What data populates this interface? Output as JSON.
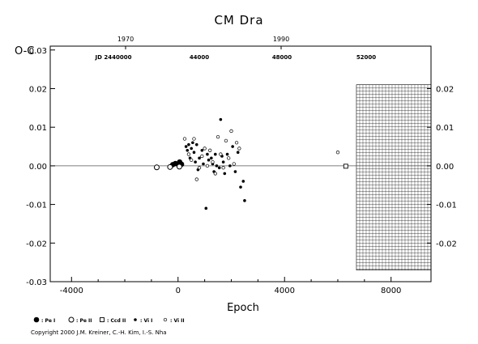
{
  "chart_data": {
    "type": "scatter",
    "title": "CM Dra",
    "xlabel": "Epoch",
    "ylabel": "O-C",
    "xlim": [
      -4800,
      9500
    ],
    "ylim": [
      -0.03,
      0.031
    ],
    "x_ticks": [
      "-4000",
      "0",
      "4000",
      "8000"
    ],
    "y_ticks_left": [
      "0.03",
      "0.02",
      "0.01",
      "0.00",
      "-0.01",
      "-0.02",
      "-0.03"
    ],
    "y_ticks_right": [
      "0.02",
      "0.01",
      "0.00",
      "-0.01",
      "-0.02"
    ],
    "top_year_axis": [
      "1970",
      "1990"
    ],
    "top_jd_axis": [
      "JD 2440000",
      "44000",
      "48000",
      "52000"
    ],
    "reference_line_y": 0,
    "future_region_start_epoch": 6700,
    "series": [
      {
        "name": ": Pe I",
        "marker": "filled-circle-large",
        "points": [
          [
            -200,
            0.0003
          ],
          [
            -100,
            0.0006
          ],
          [
            0,
            0.0005
          ],
          [
            60,
            0.001
          ],
          [
            130,
            0.0004
          ]
        ]
      },
      {
        "name": ": Pe II",
        "marker": "open-circle-large",
        "points": [
          [
            -800,
            -0.0004
          ],
          [
            -300,
            -0.0003
          ],
          [
            50,
            -0.0002
          ]
        ]
      },
      {
        "name": ": Ccd II",
        "marker": "open-square",
        "points": [
          [
            6300,
            -0.0001
          ]
        ]
      },
      {
        "name": ": Vi I",
        "marker": "filled-dot",
        "points": [
          [
            300,
            0.005
          ],
          [
            350,
            0.004
          ],
          [
            400,
            0.0055
          ],
          [
            450,
            0.002
          ],
          [
            500,
            0.0045
          ],
          [
            550,
            0.006
          ],
          [
            600,
            0.0035
          ],
          [
            650,
            0.001
          ],
          [
            700,
            0.0055
          ],
          [
            750,
            -0.001
          ],
          [
            800,
            0.002
          ],
          [
            900,
            0.004
          ],
          [
            950,
            0.0005
          ],
          [
            1050,
            -0.011
          ],
          [
            1100,
            0.003
          ],
          [
            1150,
            0.0015
          ],
          [
            1250,
            0.002
          ],
          [
            1300,
            0.0005
          ],
          [
            1350,
            -0.0015
          ],
          [
            1400,
            0.003
          ],
          [
            1450,
            0.0
          ],
          [
            1550,
            -0.0005
          ],
          [
            1600,
            0.012
          ],
          [
            1650,
            0.0025
          ],
          [
            1700,
            0.001
          ],
          [
            1750,
            -0.002
          ],
          [
            1850,
            0.003
          ],
          [
            1950,
            0.0
          ],
          [
            2050,
            0.005
          ],
          [
            2150,
            -0.0015
          ],
          [
            2250,
            0.0035
          ],
          [
            2350,
            -0.0055
          ],
          [
            2450,
            -0.004
          ],
          [
            2500,
            -0.009
          ]
        ]
      },
      {
        "name": ": Vi II",
        "marker": "open-dot",
        "points": [
          [
            250,
            0.007
          ],
          [
            400,
            0.003
          ],
          [
            500,
            0.0015
          ],
          [
            600,
            0.007
          ],
          [
            700,
            -0.0035
          ],
          [
            800,
            -0.0005
          ],
          [
            900,
            0.0025
          ],
          [
            1000,
            0.0045
          ],
          [
            1100,
            0.0
          ],
          [
            1200,
            0.004
          ],
          [
            1300,
            0.001
          ],
          [
            1400,
            -0.002
          ],
          [
            1500,
            0.0075
          ],
          [
            1600,
            0.003
          ],
          [
            1700,
            -0.0005
          ],
          [
            1800,
            0.0065
          ],
          [
            1900,
            0.002
          ],
          [
            2000,
            0.009
          ],
          [
            2100,
            0.0005
          ],
          [
            2200,
            0.006
          ],
          [
            2300,
            0.0045
          ],
          [
            6000,
            0.0035
          ]
        ]
      }
    ]
  },
  "copyright": "Copyright 2000 J.M. Kreiner, C.-H. Kim, I.-S. Nha"
}
